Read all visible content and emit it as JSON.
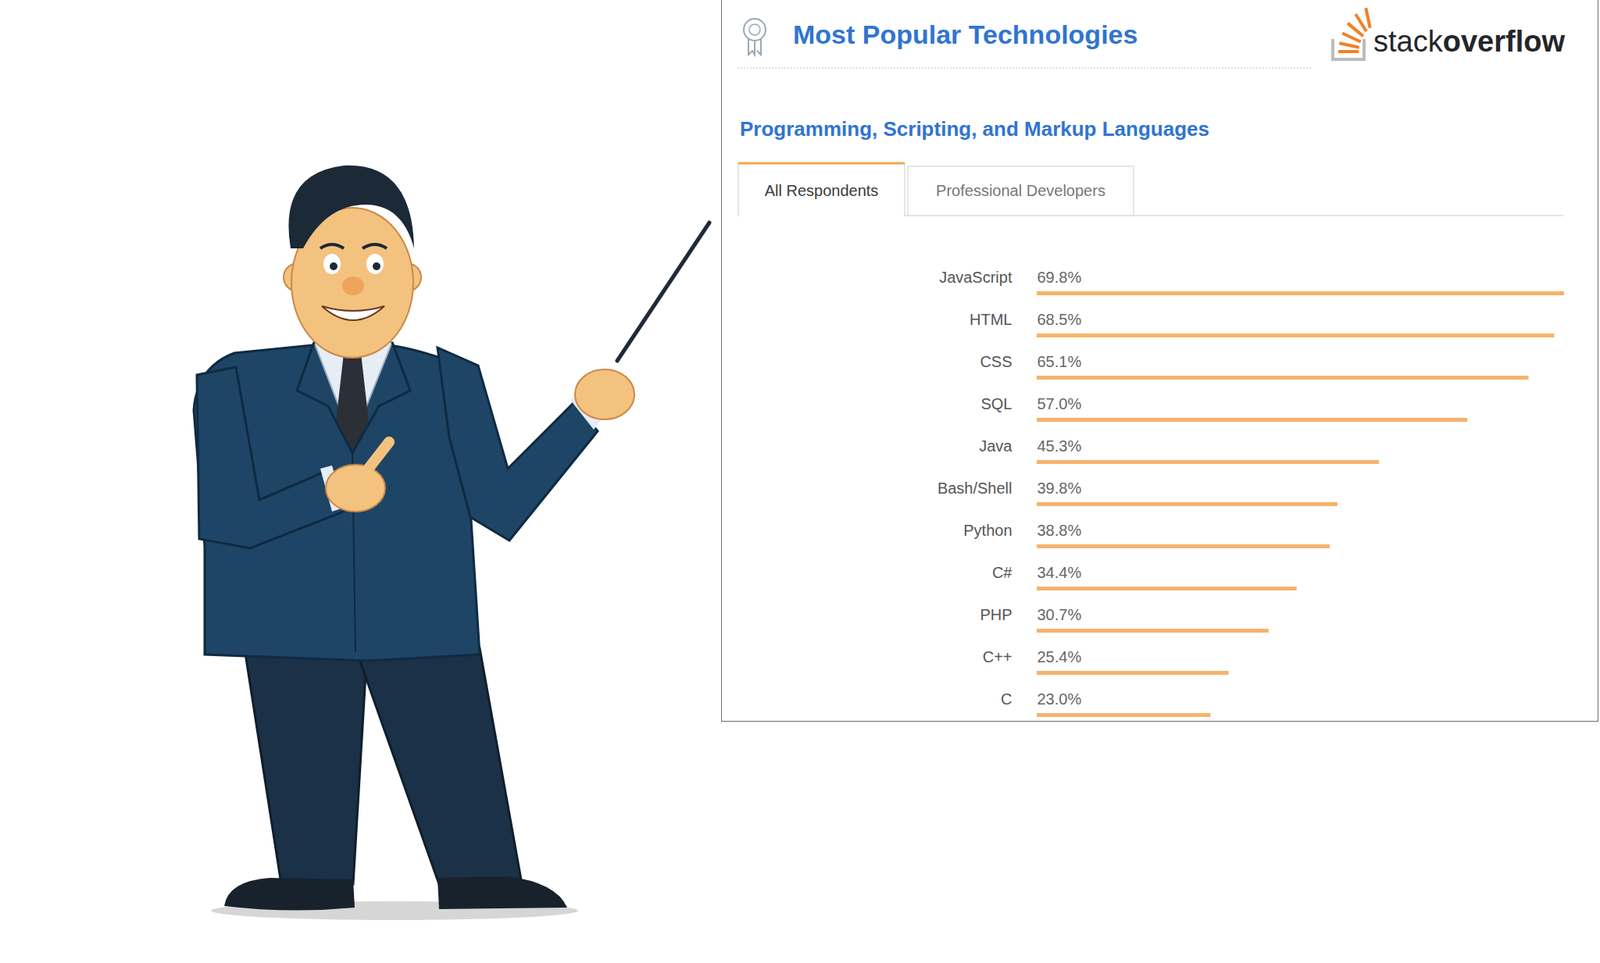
{
  "page": {
    "logo": [
      "stack",
      "overflow"
    ],
    "tabs": [
      "All Respondents",
      "Professional Developers"
    ],
    "active_tab": "All Respondents"
  },
  "chart_data": {
    "type": "bar",
    "title": "Most Popular Technologies",
    "subtitle": "Programming, Scripting, and Markup Languages",
    "orientation": "horizontal",
    "categories": [
      "JavaScript",
      "HTML",
      "CSS",
      "SQL",
      "Java",
      "Bash/Shell",
      "Python",
      "C#",
      "PHP",
      "C++",
      "C"
    ],
    "values": [
      69.8,
      68.5,
      65.1,
      57.0,
      45.3,
      39.8,
      38.8,
      34.4,
      30.7,
      25.4,
      23.0
    ],
    "value_labels": [
      "69.8%",
      "68.5%",
      "65.1%",
      "57.0%",
      "45.3%",
      "39.8%",
      "38.8%",
      "34.4%",
      "30.7%",
      "25.4%",
      "23.0%"
    ],
    "data_labels": true,
    "color": "#f5b36b",
    "xlim": [
      0,
      69.8
    ],
    "tick_labels": "y",
    "grid": false
  }
}
